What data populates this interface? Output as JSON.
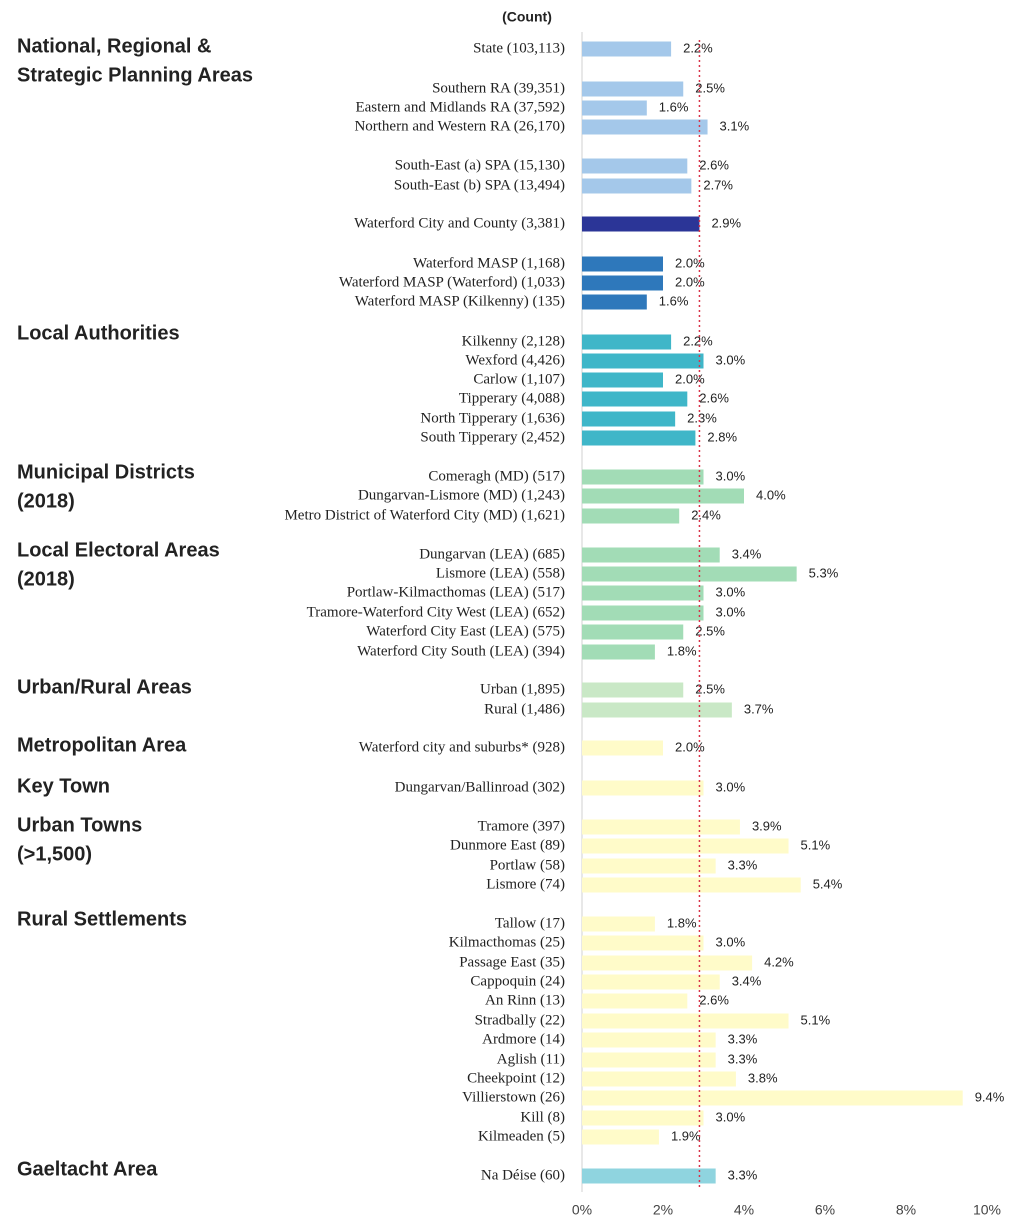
{
  "chart_data": {
    "type": "bar",
    "orientation": "horizontal",
    "axis_label": "(Count)",
    "xlim": [
      0,
      10
    ],
    "xticks": [
      {
        "value": 0,
        "label": "0%"
      },
      {
        "value": 2,
        "label": "2%"
      },
      {
        "value": 4,
        "label": "4%"
      },
      {
        "value": 6,
        "label": "6%"
      },
      {
        "value": 8,
        "label": "8%"
      },
      {
        "value": 10,
        "label": "10%"
      }
    ],
    "reference_line": 2.9,
    "reference_color": "#d9334a",
    "sections": [
      {
        "title": [
          "National, Regional &",
          "Strategic Planning Areas"
        ],
        "categories": [
          "State (103,113)",
          "Southern RA (39,351)",
          "Eastern and Midlands RA (37,592)",
          "Northern and Western RA (26,170)",
          "South-East (a) SPA (15,130)",
          "South-East (b) SPA (13,494)",
          "Waterford City and County (3,381)",
          "Waterford MASP (1,168)",
          "Waterford MASP (Waterford) (1,033)",
          "Waterford MASP (Kilkenny) (135)"
        ],
        "values": [
          2.2,
          2.5,
          1.6,
          3.1,
          2.6,
          2.7,
          2.9,
          2.0,
          2.0,
          1.6
        ],
        "value_labels": [
          "2.2%",
          "2.5%",
          "1.6%",
          "3.1%",
          "2.6%",
          "2.7%",
          "2.9%",
          "2.0%",
          "2.0%",
          "1.6%"
        ],
        "colors": [
          "#a4c8ea",
          "#a4c8ea",
          "#a4c8ea",
          "#a4c8ea",
          "#a4c8ea",
          "#a4c8ea",
          "#2b3597",
          "#2e78bb",
          "#2e78bb",
          "#2e78bb"
        ]
      },
      {
        "title": [
          "Local Authorities"
        ],
        "categories": [
          "Kilkenny (2,128)",
          "Wexford (4,426)",
          "Carlow (1,107)",
          "Tipperary (4,088)",
          "North Tipperary (1,636)",
          "South Tipperary (2,452)"
        ],
        "values": [
          2.2,
          3.0,
          2.0,
          2.6,
          2.3,
          2.8
        ],
        "value_labels": [
          "2.2%",
          "3.0%",
          "2.0%",
          "2.6%",
          "2.3%",
          "2.8%"
        ],
        "colors": [
          "#3fb6c8",
          "#3fb6c8",
          "#3fb6c8",
          "#3fb6c8",
          "#3fb6c8",
          "#3fb6c8"
        ]
      },
      {
        "title": [
          "Municipal Districts",
          "(2018)"
        ],
        "categories": [
          "Comeragh (MD) (517)",
          "Dungarvan-Lismore (MD) (1,243)",
          "Metro District of Waterford City (MD) (1,621)"
        ],
        "values": [
          3.0,
          4.0,
          2.4
        ],
        "value_labels": [
          "3.0%",
          "4.0%",
          "2.4%"
        ],
        "colors": [
          "#a2dcb6",
          "#a2dcb6",
          "#a2dcb6"
        ]
      },
      {
        "title": [
          "Local Electoral Areas",
          "(2018)"
        ],
        "categories": [
          "Dungarvan (LEA) (685)",
          "Lismore (LEA) (558)",
          "Portlaw-Kilmacthomas (LEA) (517)",
          "Tramore-Waterford City West (LEA) (652)",
          "Waterford City East (LEA) (575)",
          "Waterford City South (LEA) (394)"
        ],
        "values": [
          3.4,
          5.3,
          3.0,
          3.0,
          2.5,
          1.8
        ],
        "value_labels": [
          "3.4%",
          "5.3%",
          "3.0%",
          "3.0%",
          "2.5%",
          "1.8%"
        ],
        "colors": [
          "#a2dcb6",
          "#a2dcb6",
          "#a2dcb6",
          "#a2dcb6",
          "#a2dcb6",
          "#a2dcb6"
        ]
      },
      {
        "title": [
          "Urban/Rural Areas"
        ],
        "categories": [
          "Urban (1,895)",
          "Rural (1,486)"
        ],
        "values": [
          2.5,
          3.7
        ],
        "value_labels": [
          "2.5%",
          "3.7%"
        ],
        "colors": [
          "#c9e8c6",
          "#c9e8c6"
        ]
      },
      {
        "title": [
          "Metropolitan Area"
        ],
        "categories": [
          "Waterford city and suburbs* (928)"
        ],
        "values": [
          2.0
        ],
        "value_labels": [
          "2.0%"
        ],
        "colors": [
          "#fffbc9"
        ]
      },
      {
        "title": [
          "Key Town"
        ],
        "categories": [
          "Dungarvan/Ballinroad (302)"
        ],
        "values": [
          3.0
        ],
        "value_labels": [
          "3.0%"
        ],
        "colors": [
          "#fffbc9"
        ]
      },
      {
        "title": [
          "Urban Towns",
          "(>1,500)"
        ],
        "categories": [
          "Tramore (397)",
          "Dunmore East (89)",
          "Portlaw (58)",
          "Lismore (74)"
        ],
        "values": [
          3.9,
          5.1,
          3.3,
          5.4
        ],
        "value_labels": [
          "3.9%",
          "5.1%",
          "3.3%",
          "5.4%"
        ],
        "colors": [
          "#fffbc9",
          "#fffbc9",
          "#fffbc9",
          "#fffbc9"
        ]
      },
      {
        "title": [
          "Rural Settlements"
        ],
        "categories": [
          "Tallow (17)",
          "Kilmacthomas (25)",
          "Passage East (35)",
          "Cappoquin (24)",
          "An Rinn (13)",
          "Stradbally (22)",
          "Ardmore (14)",
          "Aglish (11)",
          "Cheekpoint (12)",
          "Villierstown (26)",
          "Kill (8)",
          "Kilmeaden (5)"
        ],
        "values": [
          1.8,
          3.0,
          4.2,
          3.4,
          2.6,
          5.1,
          3.3,
          3.3,
          3.8,
          9.4,
          3.0,
          1.9
        ],
        "value_labels": [
          "1.8%",
          "3.0%",
          "4.2%",
          "3.4%",
          "2.6%",
          "5.1%",
          "3.3%",
          "3.3%",
          "3.8%",
          "9.4%",
          "3.0%",
          "1.9%"
        ],
        "colors": [
          "#fffbc9",
          "#fffbc9",
          "#fffbc9",
          "#fffbc9",
          "#fffbc9",
          "#fffbc9",
          "#fffbc9",
          "#fffbc9",
          "#fffbc9",
          "#fffbc9",
          "#fffbc9",
          "#fffbc9"
        ]
      },
      {
        "title": [
          "Gaeltacht Area"
        ],
        "categories": [
          "Na Déise (60)"
        ],
        "values": [
          3.3
        ],
        "value_labels": [
          "3.3%"
        ],
        "colors": [
          "#8fd4df"
        ]
      }
    ]
  }
}
